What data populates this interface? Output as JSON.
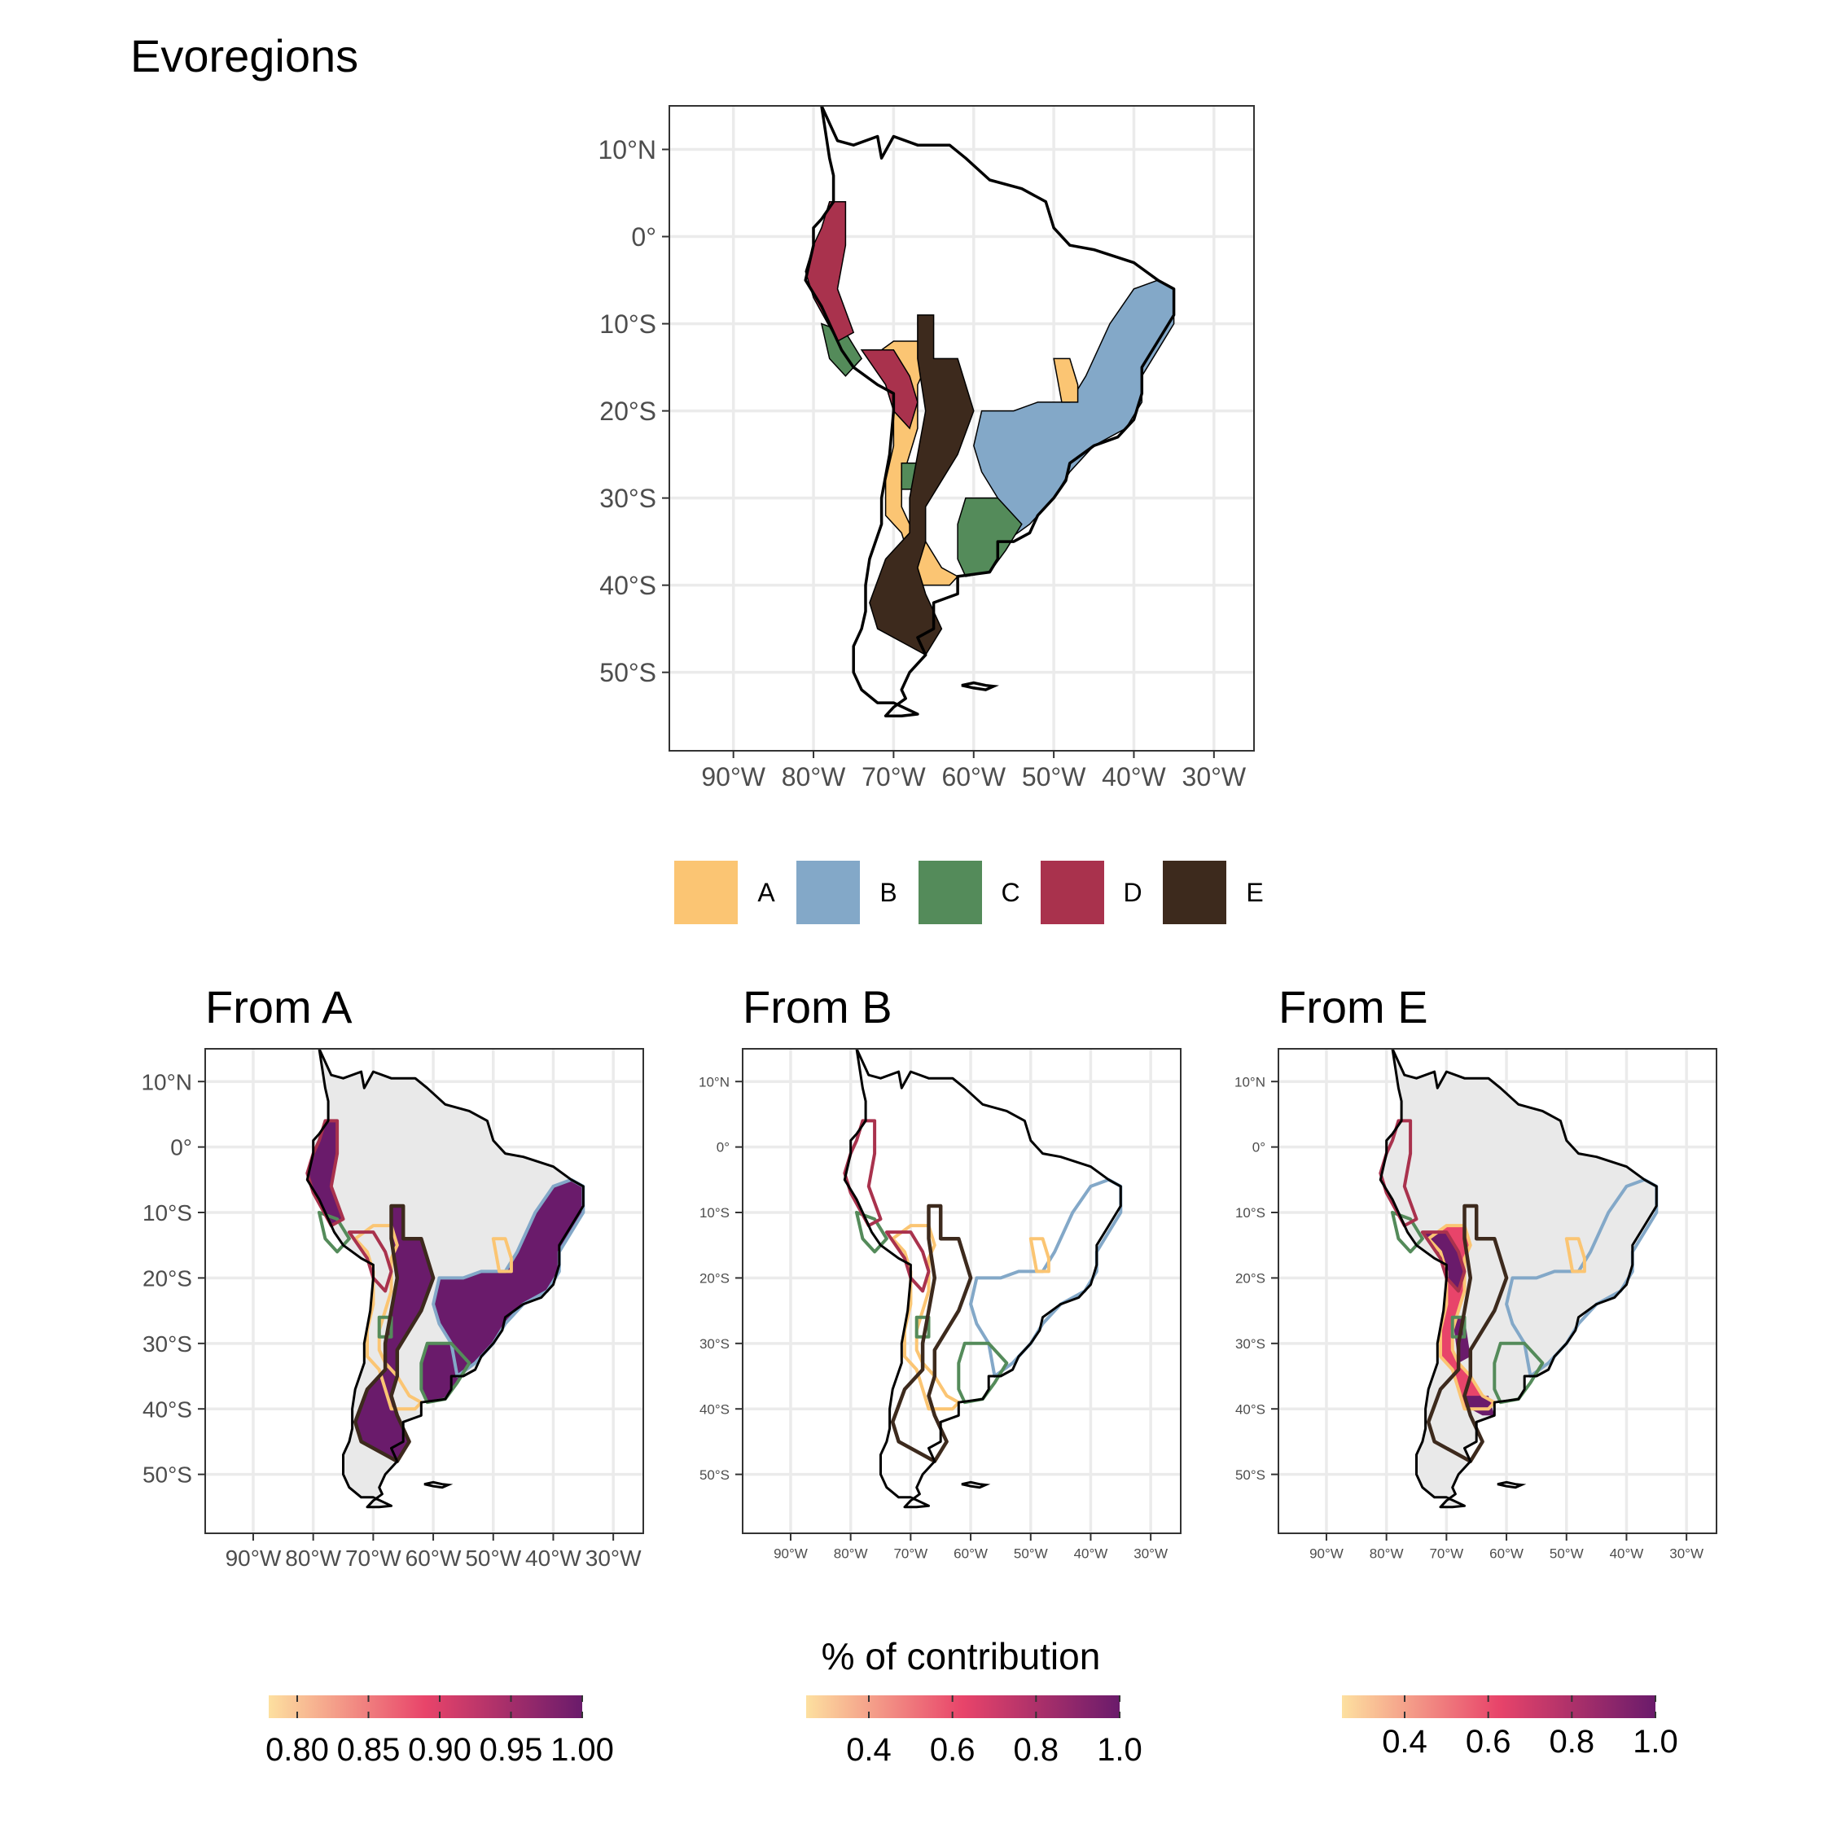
{
  "title": "Evoregions",
  "lat_labels": [
    "10°N",
    "0°",
    "10°S",
    "20°S",
    "30°S",
    "40°S",
    "50°S"
  ],
  "lat_values": [
    10,
    0,
    -10,
    -20,
    -30,
    -40,
    -50
  ],
  "lon_labels": [
    "90°W",
    "80°W",
    "70°W",
    "60°W",
    "50°W",
    "40°W",
    "30°W"
  ],
  "lon_values": [
    -90,
    -80,
    -70,
    -60,
    -50,
    -40,
    -30
  ],
  "legend": [
    {
      "label": "A",
      "color": "#FBC573"
    },
    {
      "label": "B",
      "color": "#83A8C8"
    },
    {
      "label": "C",
      "color": "#548B5A"
    },
    {
      "label": "D",
      "color": "#A9324D"
    },
    {
      "label": "E",
      "color": "#3D2A1D"
    }
  ],
  "panels": [
    {
      "title": "From A",
      "source": "A"
    },
    {
      "title": "From B",
      "source": "B"
    },
    {
      "title": "From E",
      "source": "E"
    }
  ],
  "colorbar_title": "% of contribution",
  "colorbars": [
    {
      "ticks": [
        "0.80",
        "0.85",
        "0.90",
        "0.95",
        "1.00"
      ],
      "values": [
        0.8,
        0.85,
        0.9,
        0.95,
        1.0
      ],
      "range": [
        0.78,
        1.0
      ]
    },
    {
      "ticks": [
        "0.4",
        "0.6",
        "0.8",
        "1.0"
      ],
      "values": [
        0.4,
        0.6,
        0.8,
        1.0
      ],
      "range": [
        0.25,
        1.0
      ]
    },
    {
      "ticks": [
        "0.4",
        "0.6",
        "0.8",
        "1.0"
      ],
      "values": [
        0.4,
        0.6,
        0.8,
        1.0
      ],
      "range": [
        0.25,
        1.0
      ]
    }
  ],
  "colors": {
    "scale_low": "#FDE0A0",
    "scale_mid": "#E8446A",
    "scale_high": "#6A1B6B",
    "no_data": "#E9E9E9",
    "grid": "#EBEBEB"
  }
}
